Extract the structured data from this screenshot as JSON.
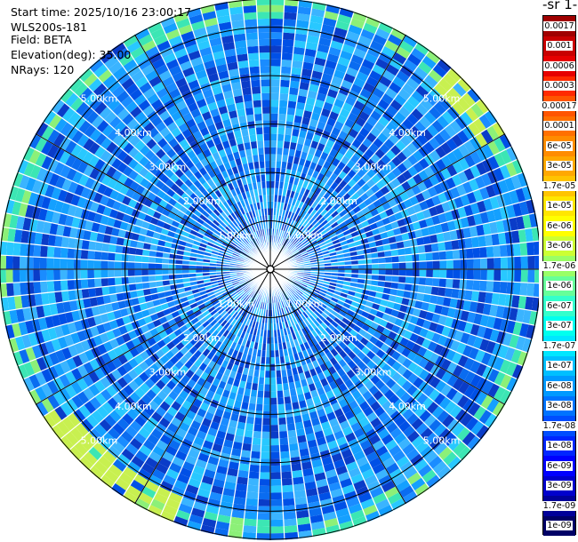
{
  "header": {
    "start_time": "Start time: 2025/10/16 23:00:17",
    "instrument": "WLS200s-181",
    "field": "Field: BETA",
    "elevation": "Elevation(deg): 35.00",
    "nrays": "NRays: 120"
  },
  "colorbar": {
    "title": "-1 sr-",
    "labels": [
      "0.0017",
      "0.001",
      "0.0006",
      "0.0003",
      "0.00017",
      "0.0001",
      "6e-05",
      "3e-05",
      "1.7e-05",
      "1e-05",
      "6e-06",
      "3e-06",
      "1.7e-06",
      "1e-06",
      "6e-07",
      "3e-07",
      "1.7e-07",
      "1e-07",
      "6e-08",
      "3e-08",
      "1.7e-08",
      "1e-08",
      "6e-09",
      "3e-09",
      "1.7e-09",
      "1e-09"
    ],
    "colors": [
      "#a00000",
      "#c80000",
      "#e60000",
      "#ff2a00",
      "#ff5500",
      "#ff7000",
      "#ff8c00",
      "#ffa800",
      "#ffc400",
      "#ffe600",
      "#ffff00",
      "#ccff33",
      "#99ff66",
      "#66ff99",
      "#33ffcc",
      "#00ffee",
      "#00e6ff",
      "#00bfff",
      "#0099ff",
      "#0073ff",
      "#004dff",
      "#0026ff",
      "#0000ff",
      "#0000cc",
      "#000099",
      "#000066"
    ]
  },
  "chart_data": {
    "type": "ppi",
    "field": "BETA",
    "elevation_deg": 35.0,
    "nrays": 120,
    "range_rings_km": [
      1,
      2,
      3,
      4,
      5
    ],
    "range_labels": [
      "1.00km",
      "2.00km",
      "3.00km",
      "4.00km",
      "5.00km"
    ],
    "max_range_km": 5.6,
    "typical_value": "3e-08 to 1.7e-07"
  }
}
